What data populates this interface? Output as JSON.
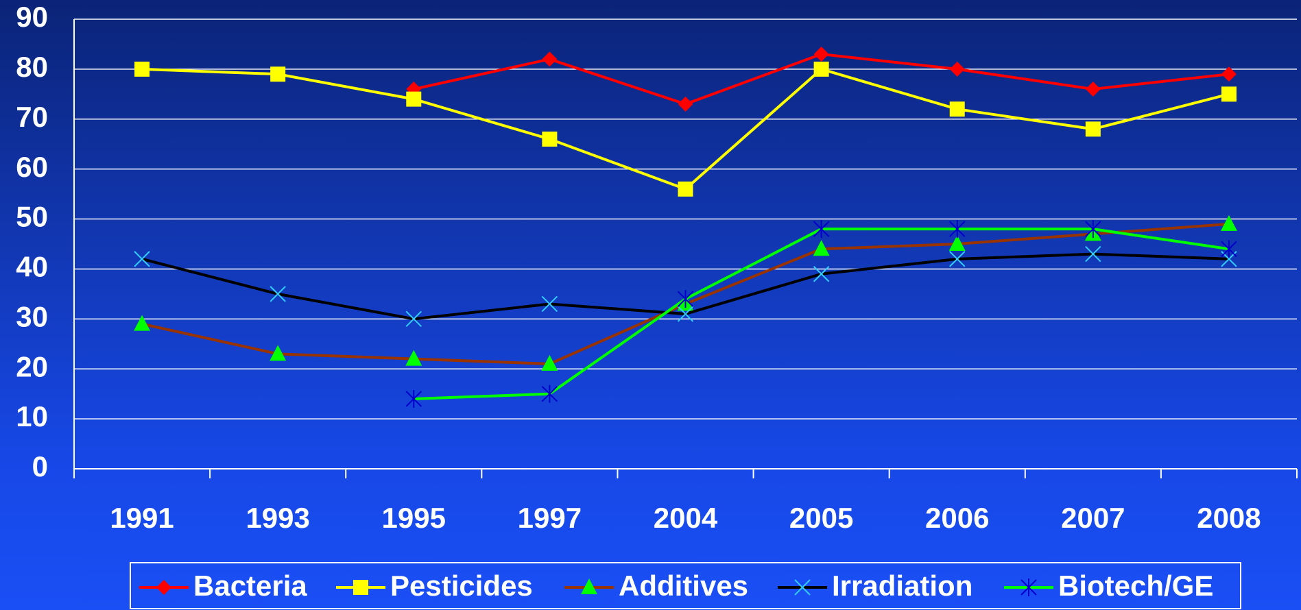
{
  "chart_data": {
    "type": "line",
    "categories": [
      "1991",
      "1993",
      "1995",
      "1997",
      "2004",
      "2005",
      "2006",
      "2007",
      "2008"
    ],
    "series": [
      {
        "name": "Bacteria",
        "color": "#ff0000",
        "marker_color": "#ff0000",
        "marker": "diamond",
        "values": [
          null,
          null,
          76,
          82,
          73,
          83,
          80,
          76,
          79
        ]
      },
      {
        "name": "Pesticides",
        "color": "#ffff00",
        "marker_color": "#ffff00",
        "marker": "square",
        "values": [
          80,
          79,
          74,
          66,
          56,
          80,
          72,
          68,
          75
        ]
      },
      {
        "name": "Additives",
        "color": "#993300",
        "marker_color": "#00ff00",
        "marker": "triangle",
        "values": [
          29,
          23,
          22,
          21,
          33,
          44,
          45,
          47,
          49
        ]
      },
      {
        "name": "Irradiation",
        "color": "#000000",
        "marker_color": "#33ccff",
        "marker": "x",
        "values": [
          42,
          35,
          30,
          33,
          31,
          39,
          42,
          43,
          42
        ]
      },
      {
        "name": "Biotech/GE",
        "color": "#00ff00",
        "marker_color": "#0000cc",
        "marker": "asterisk",
        "values": [
          null,
          null,
          14,
          15,
          34,
          48,
          48,
          48,
          44
        ]
      }
    ],
    "ylim": [
      0,
      90
    ],
    "yticks": [
      0,
      10,
      20,
      30,
      40,
      50,
      60,
      70,
      80,
      90
    ],
    "grid": true,
    "legend": "bottom"
  }
}
